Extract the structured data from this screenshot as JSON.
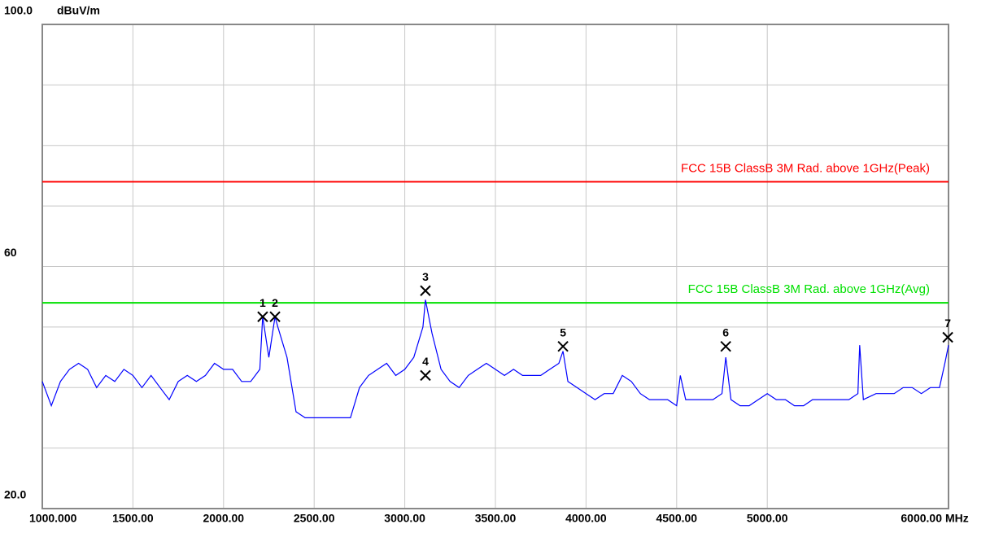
{
  "chart_data": {
    "type": "line",
    "y_unit": "dBuV/m",
    "x_unit": "MHz",
    "xlim": [
      1000,
      6000
    ],
    "ylim": [
      20,
      100
    ],
    "yticks": [
      {
        "value": 100,
        "label": "100.0"
      },
      60,
      {
        "value": 20,
        "label": "20.0"
      }
    ],
    "ygrid": [
      30,
      40,
      50,
      60,
      70,
      80,
      90
    ],
    "xticks": [
      {
        "value": 1000,
        "label": "1000.000"
      },
      {
        "value": 1500,
        "label": "1500.00"
      },
      {
        "value": 2000,
        "label": "2000.00"
      },
      {
        "value": 2500,
        "label": "2500.00"
      },
      {
        "value": 3000,
        "label": "3000.00"
      },
      {
        "value": 3500,
        "label": "3500.00"
      },
      {
        "value": 4000,
        "label": "4000.00"
      },
      {
        "value": 4500,
        "label": "4500.00"
      },
      {
        "value": 5000,
        "label": "5000.00"
      },
      {
        "value": 6000,
        "label": "6000.00"
      }
    ],
    "grid": true,
    "x": [
      1000,
      1050,
      1100,
      1150,
      1200,
      1250,
      1300,
      1350,
      1400,
      1450,
      1500,
      1550,
      1600,
      1650,
      1700,
      1750,
      1800,
      1850,
      1900,
      1950,
      2000,
      2050,
      2100,
      2150,
      2200,
      2216,
      2250,
      2284,
      2300,
      2350,
      2400,
      2450,
      2500,
      2550,
      2600,
      2650,
      2700,
      2750,
      2800,
      2850,
      2900,
      2950,
      3000,
      3050,
      3100,
      3114,
      3150,
      3200,
      3250,
      3300,
      3350,
      3400,
      3450,
      3500,
      3550,
      3600,
      3650,
      3700,
      3750,
      3800,
      3850,
      3873,
      3900,
      3950,
      4000,
      4050,
      4100,
      4150,
      4200,
      4250,
      4300,
      4350,
      4400,
      4450,
      4500,
      4520,
      4550,
      4600,
      4650,
      4700,
      4750,
      4771,
      4800,
      4850,
      4900,
      4950,
      5000,
      5050,
      5100,
      5150,
      5200,
      5250,
      5300,
      5350,
      5400,
      5450,
      5500,
      5510,
      5530,
      5600,
      5650,
      5700,
      5750,
      5800,
      5850,
      5900,
      5950,
      5980,
      6000
    ],
    "series": [
      {
        "color": "#0000ff",
        "values": [
          41,
          37,
          41,
          43,
          44,
          43,
          40,
          42,
          41,
          43,
          42,
          40,
          42,
          40,
          38,
          41,
          42,
          41,
          42,
          44,
          43,
          43,
          41,
          41,
          43,
          51.7,
          45,
          51.7,
          50,
          45,
          36,
          35,
          35,
          35,
          35,
          35,
          35,
          40,
          42,
          43,
          44,
          42,
          43,
          45,
          50,
          54.5,
          49,
          43,
          41,
          40,
          42,
          43,
          44,
          43,
          42,
          43,
          42,
          42,
          42,
          43,
          44,
          46,
          41,
          40,
          39,
          38,
          39,
          39,
          42,
          41,
          39,
          38,
          38,
          38,
          37,
          42,
          38,
          38,
          38,
          38,
          39,
          45,
          38,
          37,
          37,
          38,
          39,
          38,
          38,
          37,
          37,
          38,
          38,
          38,
          38,
          38,
          39,
          47,
          38,
          39,
          39,
          39,
          40,
          40,
          39,
          40,
          40,
          44,
          47
        ]
      }
    ],
    "limits": [
      {
        "name": "FCC 15B ClassB 3M Rad. above 1GHz(Peak)",
        "color": "#ff0000",
        "value": 74
      },
      {
        "name": "FCC 15B ClassB 3M Rad. above 1GHz(Avg)",
        "color": "#00e000",
        "value": 54
      }
    ],
    "markers": [
      {
        "label": "1",
        "x": 2216,
        "y": 51.7
      },
      {
        "label": "2",
        "x": 2284,
        "y": 51.7
      },
      {
        "label": "3",
        "x": 3114,
        "y": 56.0
      },
      {
        "label": "4",
        "x": 3114,
        "y": 42.0
      },
      {
        "label": "5",
        "x": 3873,
        "y": 46.8
      },
      {
        "label": "6",
        "x": 4771,
        "y": 46.8
      },
      {
        "label": "7",
        "x": 5996,
        "y": 48.3
      }
    ]
  }
}
